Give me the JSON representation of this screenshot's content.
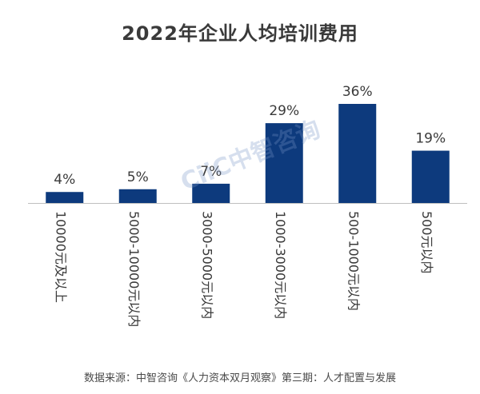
{
  "chart_data": {
    "type": "bar",
    "title": "2022年企业人均培训费用",
    "categories": [
      "10000元及以上",
      "5000-10000元以内",
      "3000-5000元以内",
      "1000-3000元以内",
      "500-1000元以内",
      "500元以内"
    ],
    "values": [
      4,
      5,
      7,
      29,
      36,
      19
    ],
    "data_labels": [
      "4%",
      "5%",
      "7%",
      "29%",
      "36%",
      "19%"
    ],
    "unit": "%",
    "bar_color": "#0d3a7d",
    "label_color": "#3a3a3a",
    "axis_color": "#bfbfbf",
    "ylim": [
      0,
      40
    ],
    "grid": false
  },
  "watermark": "CiiC中智咨询",
  "source": "数据来源：中智咨询《人力资本双月观察》第三期：人才配置与发展"
}
